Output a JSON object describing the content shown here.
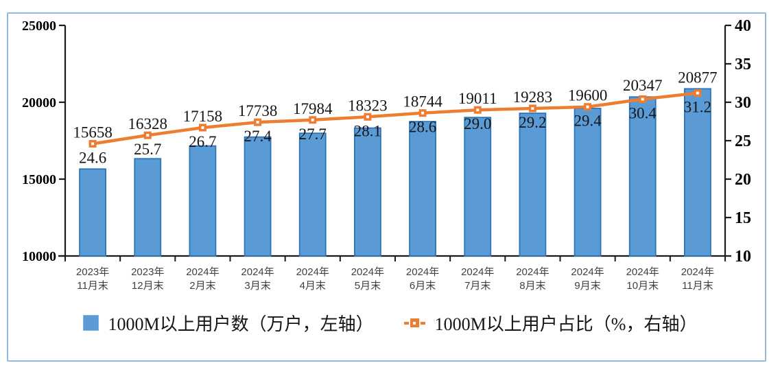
{
  "frame": {
    "border_color": "#8FBADF",
    "background": "#FFFFFF"
  },
  "colors": {
    "axis": "#1A1A1A",
    "bar_fill": "#5B9BD5",
    "bar_border": "#2E75B6",
    "line": "#ED7D31",
    "marker_inner": "#FFFFFF",
    "tick_label": "#000000",
    "data_label": "#151515",
    "category_label": "#3F3F3F"
  },
  "chart_data": {
    "type": "combo",
    "title": "",
    "grid": "off",
    "legend_position": "bottom",
    "categories": [
      [
        "2023年",
        "11月末"
      ],
      [
        "2023年",
        "12月末"
      ],
      [
        "2024年",
        "2月末"
      ],
      [
        "2024年",
        "3月末"
      ],
      [
        "2024年",
        "4月末"
      ],
      [
        "2024年",
        "5月末"
      ],
      [
        "2024年",
        "6月末"
      ],
      [
        "2024年",
        "7月末"
      ],
      [
        "2024年",
        "8月末"
      ],
      [
        "2024年",
        "9月末"
      ],
      [
        "2024年",
        "10月末"
      ],
      [
        "2024年",
        "11月末"
      ]
    ],
    "series": [
      {
        "name": "1000M以上用户数（万户，左轴）",
        "type": "bar",
        "axis": "left",
        "color": "#5B9BD5",
        "border_color": "#2E75B6",
        "values": [
          15658,
          16328,
          17158,
          17738,
          17984,
          18323,
          18744,
          19011,
          19283,
          19600,
          20347,
          20877
        ],
        "label_decimals": 0
      },
      {
        "name": "1000M以上用户占比（%，右轴）",
        "type": "line",
        "axis": "right",
        "color": "#ED7D31",
        "values": [
          24.6,
          25.7,
          26.7,
          27.4,
          27.7,
          28.1,
          28.6,
          29.0,
          29.2,
          29.4,
          30.4,
          31.2
        ],
        "label_decimals": 1
      }
    ],
    "left_axis": {
      "min": 10000,
      "max": 25000,
      "step": 5000,
      "ticks": [
        "10000",
        "15000",
        "20000",
        "25000"
      ]
    },
    "right_axis": {
      "min": 10,
      "max": 40,
      "step": 5,
      "ticks": [
        "10",
        "15",
        "20",
        "25",
        "30",
        "35",
        "40"
      ]
    }
  }
}
